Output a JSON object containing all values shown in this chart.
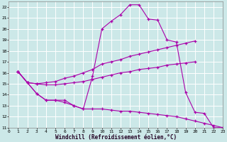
{
  "xlabel": "Windchill (Refroidissement éolien,°C)",
  "bg_color": "#cce8e8",
  "line_color": "#aa00aa",
  "grid_color": "#ffffff",
  "xlim": [
    0,
    23
  ],
  "ylim": [
    11,
    22.5
  ],
  "yticks": [
    11,
    12,
    13,
    14,
    15,
    16,
    17,
    18,
    19,
    20,
    21,
    22
  ],
  "xticks": [
    0,
    1,
    2,
    3,
    4,
    5,
    6,
    7,
    8,
    9,
    10,
    11,
    12,
    13,
    14,
    15,
    16,
    17,
    18,
    19,
    20,
    21,
    22,
    23
  ],
  "lines": [
    {
      "x": [
        1,
        2,
        3,
        4,
        5,
        6,
        7,
        8,
        9,
        10,
        11,
        12,
        13,
        14,
        15,
        16,
        17,
        18,
        19,
        20,
        21,
        22,
        23
      ],
      "y": [
        16.1,
        15.1,
        14.1,
        13.5,
        13.5,
        13.5,
        13.0,
        12.7,
        15.7,
        20.0,
        20.7,
        21.3,
        22.2,
        22.2,
        20.9,
        20.8,
        19.0,
        18.8,
        14.2,
        12.4,
        12.3,
        11.0,
        11.0
      ]
    },
    {
      "x": [
        1,
        2,
        3,
        4,
        5,
        6,
        7,
        8,
        9,
        10,
        11,
        12,
        13,
        14,
        15,
        16,
        17,
        18,
        19,
        20
      ],
      "y": [
        16.1,
        15.1,
        15.0,
        15.1,
        15.2,
        15.5,
        15.7,
        16.0,
        16.3,
        16.8,
        17.0,
        17.2,
        17.5,
        17.7,
        17.9,
        18.1,
        18.3,
        18.5,
        18.7,
        18.9
      ]
    },
    {
      "x": [
        1,
        2,
        3,
        4,
        5,
        6,
        7,
        8,
        9,
        10,
        11,
        12,
        13,
        14,
        15,
        16,
        17,
        18,
        19,
        20
      ],
      "y": [
        16.1,
        15.1,
        15.0,
        14.9,
        14.9,
        15.0,
        15.1,
        15.2,
        15.4,
        15.6,
        15.8,
        16.0,
        16.1,
        16.3,
        16.4,
        16.5,
        16.7,
        16.8,
        16.9,
        17.0
      ]
    },
    {
      "x": [
        1,
        2,
        3,
        4,
        5,
        6,
        7,
        8,
        9,
        10,
        11,
        12,
        13,
        14,
        15,
        16,
        17,
        18,
        19,
        20,
        21,
        22,
        23
      ],
      "y": [
        16.1,
        15.1,
        14.1,
        13.5,
        13.5,
        13.3,
        13.0,
        12.7,
        12.7,
        12.7,
        12.6,
        12.5,
        12.5,
        12.4,
        12.3,
        12.2,
        12.1,
        12.0,
        11.8,
        11.6,
        11.4,
        11.2,
        11.0
      ]
    }
  ]
}
